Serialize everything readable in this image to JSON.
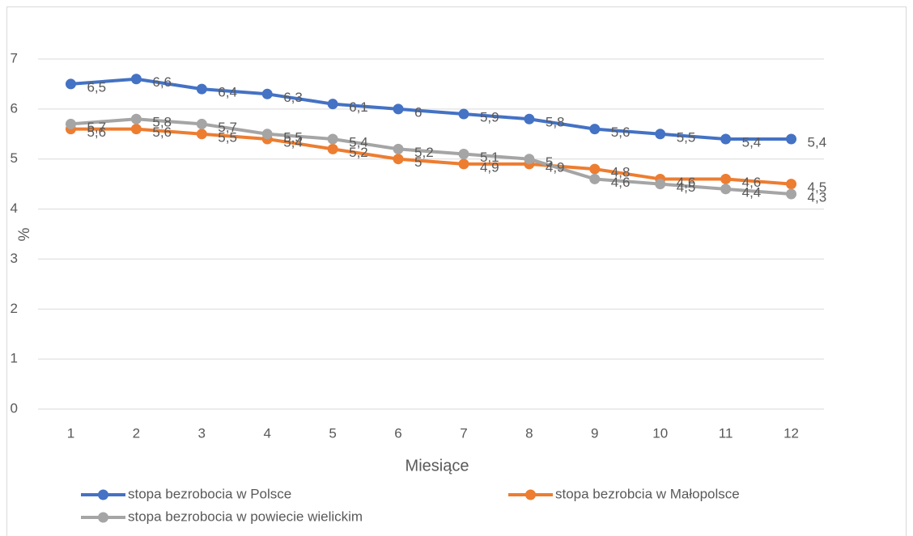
{
  "chart_data": {
    "type": "line",
    "categories": [
      1,
      2,
      3,
      4,
      5,
      6,
      7,
      8,
      9,
      10,
      11,
      12
    ],
    "x_label": "Miesiące",
    "y_label": "%",
    "ylim": [
      0,
      7
    ],
    "yticks": [
      0,
      1,
      2,
      3,
      4,
      5,
      6,
      7
    ],
    "grid": true,
    "legend": "bottom",
    "series": [
      {
        "name": "stopa bezrobocia w Polsce",
        "color": "#4472c4",
        "values": [
          6.5,
          6.6,
          6.4,
          6.3,
          6.1,
          6.0,
          5.9,
          5.8,
          5.6,
          5.5,
          5.4,
          5.4
        ],
        "value_labels": [
          "6,5",
          "6,6",
          "6,4",
          "6,3",
          "6,1",
          "6",
          "5,9",
          "5,8",
          "5,6",
          "5,5",
          "5,4",
          "5,4"
        ]
      },
      {
        "name": "stopa bezrobcia w Małopolsce",
        "color": "#ed7d31",
        "values": [
          5.6,
          5.6,
          5.5,
          5.4,
          5.2,
          5.0,
          4.9,
          4.9,
          4.8,
          4.6,
          4.6,
          4.5
        ],
        "value_labels": [
          "5,6",
          "5,6",
          "5,5",
          "5,4",
          "5,2",
          "5",
          "4,9",
          "4,9",
          "4,8",
          "4,6",
          "4,6",
          "4,5"
        ]
      },
      {
        "name": "stopa bezrobocia w powiecie wielickim",
        "color": "#a5a5a5",
        "values": [
          5.7,
          5.8,
          5.7,
          5.5,
          5.4,
          5.2,
          5.1,
          5.0,
          4.6,
          4.5,
          4.4,
          4.3
        ],
        "value_labels": [
          "5,7",
          "5,8",
          "5,7",
          "5,5",
          "5,4",
          "5,2",
          "5,1",
          "5",
          "4,6",
          "4,5",
          "4,4",
          "4,3"
        ]
      }
    ]
  }
}
